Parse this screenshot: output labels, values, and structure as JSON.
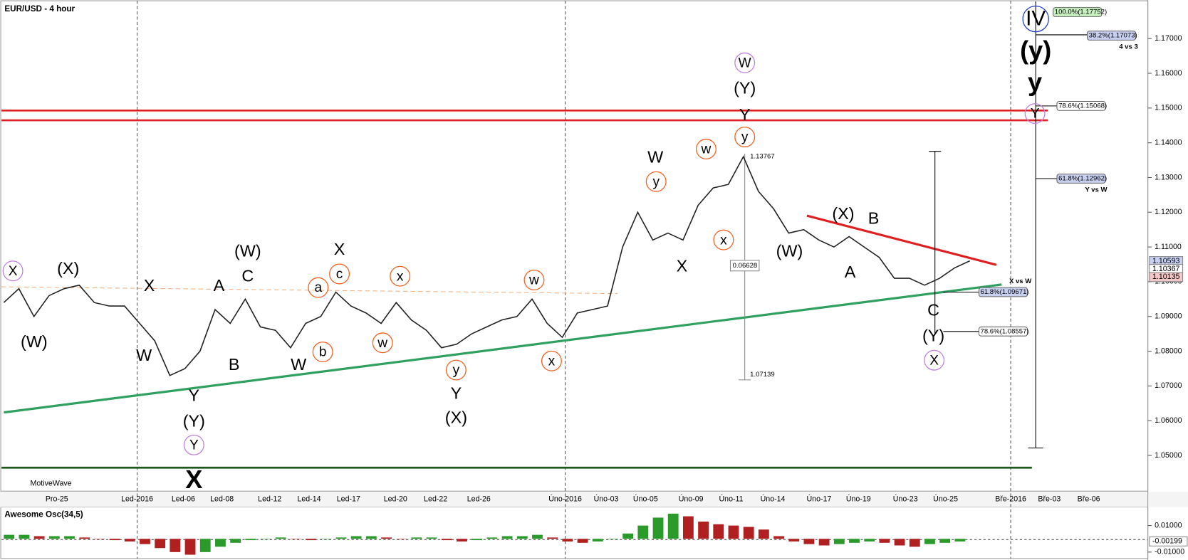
{
  "header": {
    "title": "EUR/USD - 4 hour",
    "brand": "MotiveWave"
  },
  "chart_data": [
    {
      "type": "line",
      "color": "#222222",
      "values": [
        1.094,
        1.098,
        1.09,
        1.096,
        1.098,
        1.099,
        1.094,
        1.093,
        1.093,
        1.088,
        1.083,
        1.073,
        1.075,
        1.08,
        1.092,
        1.088,
        1.095,
        1.087,
        1.086,
        1.081,
        1.088,
        1.09,
        1.097,
        1.093,
        1.091,
        1.088,
        1.094,
        1.089,
        1.086,
        1.081,
        1.082,
        1.085,
        1.087,
        1.089,
        1.09,
        1.095,
        1.088,
        1.084,
        1.091,
        1.092,
        1.093,
        1.11,
        1.12,
        1.112,
        1.114,
        1.112,
        1.122,
        1.127,
        1.128,
        1.136,
        1.126,
        1.121,
        1.114,
        1.115,
        1.112,
        1.11,
        1.113,
        1.11,
        1.107,
        1.101,
        1.101,
        1.099,
        1.101,
        1.104,
        1.106
      ],
      "ylim": [
        1.0395,
        1.1811
      ],
      "yticks": [
        {
          "value": 1.05,
          "label": "1.05000"
        },
        {
          "value": 1.06,
          "label": "1.06000"
        },
        {
          "value": 1.07,
          "label": "1.07000"
        },
        {
          "value": 1.08,
          "label": "1.08000"
        },
        {
          "value": 1.09,
          "label": "1.09000"
        },
        {
          "value": 1.1,
          "label": "1.10000"
        },
        {
          "value": 1.11,
          "label": "1.11000"
        },
        {
          "value": 1.12,
          "label": "1.12000"
        },
        {
          "value": 1.13,
          "label": "1.13000"
        },
        {
          "value": 1.14,
          "label": "1.14000"
        },
        {
          "value": 1.15,
          "label": "1.15000"
        },
        {
          "value": 1.16,
          "label": "1.16000"
        },
        {
          "value": 1.17,
          "label": "1.17000"
        }
      ],
      "date_labels": [
        "Pro-25",
        "Led-2016",
        "Led-06",
        "Led-08",
        "Led-12",
        "Led-14",
        "Led-17",
        "Led-20",
        "Led-22",
        "Led-26",
        "Úno-2016",
        "Úno-03",
        "Úno-05",
        "Úno-09",
        "Úno-11",
        "Úno-14",
        "Úno-17",
        "Úno-19",
        "Úno-23",
        "Úno-25",
        "Bře-2016",
        "Bře-03",
        "Bře-06"
      ],
      "price_tags": [
        {
          "value": 1.10593,
          "label": "1.10593",
          "color": "#c8d0f0"
        },
        {
          "value": 1.10367,
          "label": "1.10367",
          "color": "#ffffff"
        },
        {
          "value": 1.10135,
          "label": "1.10135",
          "color": "#f4c8c8"
        }
      ]
    },
    {
      "type": "bar",
      "title": "Awesome Osc(34,5)",
      "up_color": "#2a9a2a",
      "down_color": "#b02020",
      "values": [
        0.003,
        0.003,
        0.002,
        0.002,
        0.002,
        0.001,
        0.0,
        -0.001,
        -0.002,
        -0.004,
        -0.007,
        -0.01,
        -0.012,
        -0.01,
        -0.006,
        -0.003,
        -0.001,
        0.0,
        0.001,
        0.0,
        -0.001,
        0.0,
        0.001,
        0.002,
        0.002,
        0.001,
        0.0,
        0.001,
        0.001,
        -0.001,
        -0.002,
        -0.001,
        0.001,
        0.002,
        0.002,
        0.003,
        0.001,
        -0.002,
        -0.003,
        -0.002,
        0.0,
        0.004,
        0.01,
        0.016,
        0.019,
        0.017,
        0.013,
        0.011,
        0.01,
        0.009,
        0.007,
        0.002,
        -0.002,
        -0.004,
        -0.005,
        -0.004,
        -0.003,
        -0.002,
        -0.003,
        -0.005,
        -0.006,
        -0.004,
        -0.003,
        -0.002
      ],
      "ylim": [
        -0.016,
        0.024
      ],
      "yticks": [
        {
          "value": 0.01,
          "label": "0.01000"
        },
        {
          "value": -0.01,
          "label": "-0.01000"
        }
      ],
      "last": {
        "value": -0.00199,
        "label": "-0.00199"
      }
    }
  ],
  "fib_labels": [
    {
      "text": "100.0%(1.17752)",
      "color": "#c8f0c0"
    },
    {
      "text": "38.2%(1.17073)",
      "color": "#c8d0f0"
    },
    {
      "text": "4 vs 3",
      "color": "none"
    },
    {
      "text": "78.6%(1.15068)",
      "color": "#ffffff"
    },
    {
      "text": "61.8%(1.12962)",
      "color": "#c8d0f0"
    },
    {
      "text": "Y vs W",
      "color": "none"
    },
    {
      "text": "X vs W",
      "color": "none"
    },
    {
      "text": "61.8%(1.09671)",
      "color": "#c8d0f0"
    },
    {
      "text": "78.6%(1.08557)",
      "color": "#ffffff"
    }
  ],
  "measure_labels": [
    "1.13767",
    "0.06628",
    "1.07139"
  ],
  "waves": [
    {
      "label": "X",
      "color": "#c080e0",
      "circled": true
    },
    {
      "label": "(X)",
      "color": "#20b0f0",
      "circled": false
    },
    {
      "label": "(W)",
      "color": "#20b0f0",
      "circled": false
    },
    {
      "label": "X",
      "color": "#90c020",
      "circled": false
    },
    {
      "label": "W",
      "color": "#90c020",
      "circled": false
    },
    {
      "label": "Y",
      "color": "#90c020",
      "circled": false
    },
    {
      "label": "(Y)",
      "color": "#20b0f0",
      "circled": false
    },
    {
      "label": "Y",
      "color": "#c080e0",
      "circled": true
    },
    {
      "label": "X",
      "color": "#a03000",
      "circled": false
    },
    {
      "label": "A",
      "color": "#90c020",
      "circled": false
    },
    {
      "label": "B",
      "color": "#90c020",
      "circled": false
    },
    {
      "label": "C",
      "color": "#90c020",
      "circled": false
    },
    {
      "label": "(W)",
      "color": "#20b0f0",
      "circled": false
    },
    {
      "label": "W",
      "color": "#90c020",
      "circled": false
    },
    {
      "label": "X",
      "color": "#90c020",
      "circled": false
    },
    {
      "label": "a",
      "color": "#f06020",
      "circled": true
    },
    {
      "label": "b",
      "color": "#f06020",
      "circled": true
    },
    {
      "label": "c",
      "color": "#f06020",
      "circled": true
    },
    {
      "label": "w",
      "color": "#f06020",
      "circled": true
    },
    {
      "label": "x",
      "color": "#f06020",
      "circled": true
    },
    {
      "label": "y",
      "color": "#f06020",
      "circled": true
    },
    {
      "label": "Y",
      "color": "#90c020",
      "circled": false
    },
    {
      "label": "(X)",
      "color": "#20b0f0",
      "circled": false
    },
    {
      "label": "w",
      "color": "#f06020",
      "circled": true
    },
    {
      "label": "x",
      "color": "#f06020",
      "circled": true
    },
    {
      "label": "W",
      "color": "#90c020",
      "circled": false
    },
    {
      "label": "y",
      "color": "#f06020",
      "circled": true
    },
    {
      "label": "X",
      "color": "#90c020",
      "circled": false
    },
    {
      "label": "w",
      "color": "#f06020",
      "circled": true
    },
    {
      "label": "x",
      "color": "#f06020",
      "circled": true
    },
    {
      "label": "y",
      "color": "#f06020",
      "circled": true
    },
    {
      "label": "Y",
      "color": "#b0b020",
      "circled": false
    },
    {
      "label": "(Y)",
      "color": "#20b0f0",
      "circled": false
    },
    {
      "label": "W",
      "color": "#c080e0",
      "circled": true
    },
    {
      "label": "(X)",
      "color": "#20b0f0",
      "circled": false
    },
    {
      "label": "B",
      "color": "#90c020",
      "circled": false
    },
    {
      "label": "(W)",
      "color": "#20b0f0",
      "circled": false
    },
    {
      "label": "A",
      "color": "#90c020",
      "circled": false
    },
    {
      "label": "C",
      "color": "#90c020",
      "circled": false
    },
    {
      "label": "(Y)",
      "color": "#20b0f0",
      "circled": false
    },
    {
      "label": "X",
      "color": "#c080e0",
      "circled": true
    },
    {
      "label": "IV",
      "color": "#2040c0",
      "circled": true
    },
    {
      "label": "(y)",
      "color": "#208020",
      "circled": false
    },
    {
      "label": "y",
      "color": "#a03000",
      "circled": false
    },
    {
      "label": "Y",
      "color": "#c080e0",
      "circled": true
    }
  ]
}
